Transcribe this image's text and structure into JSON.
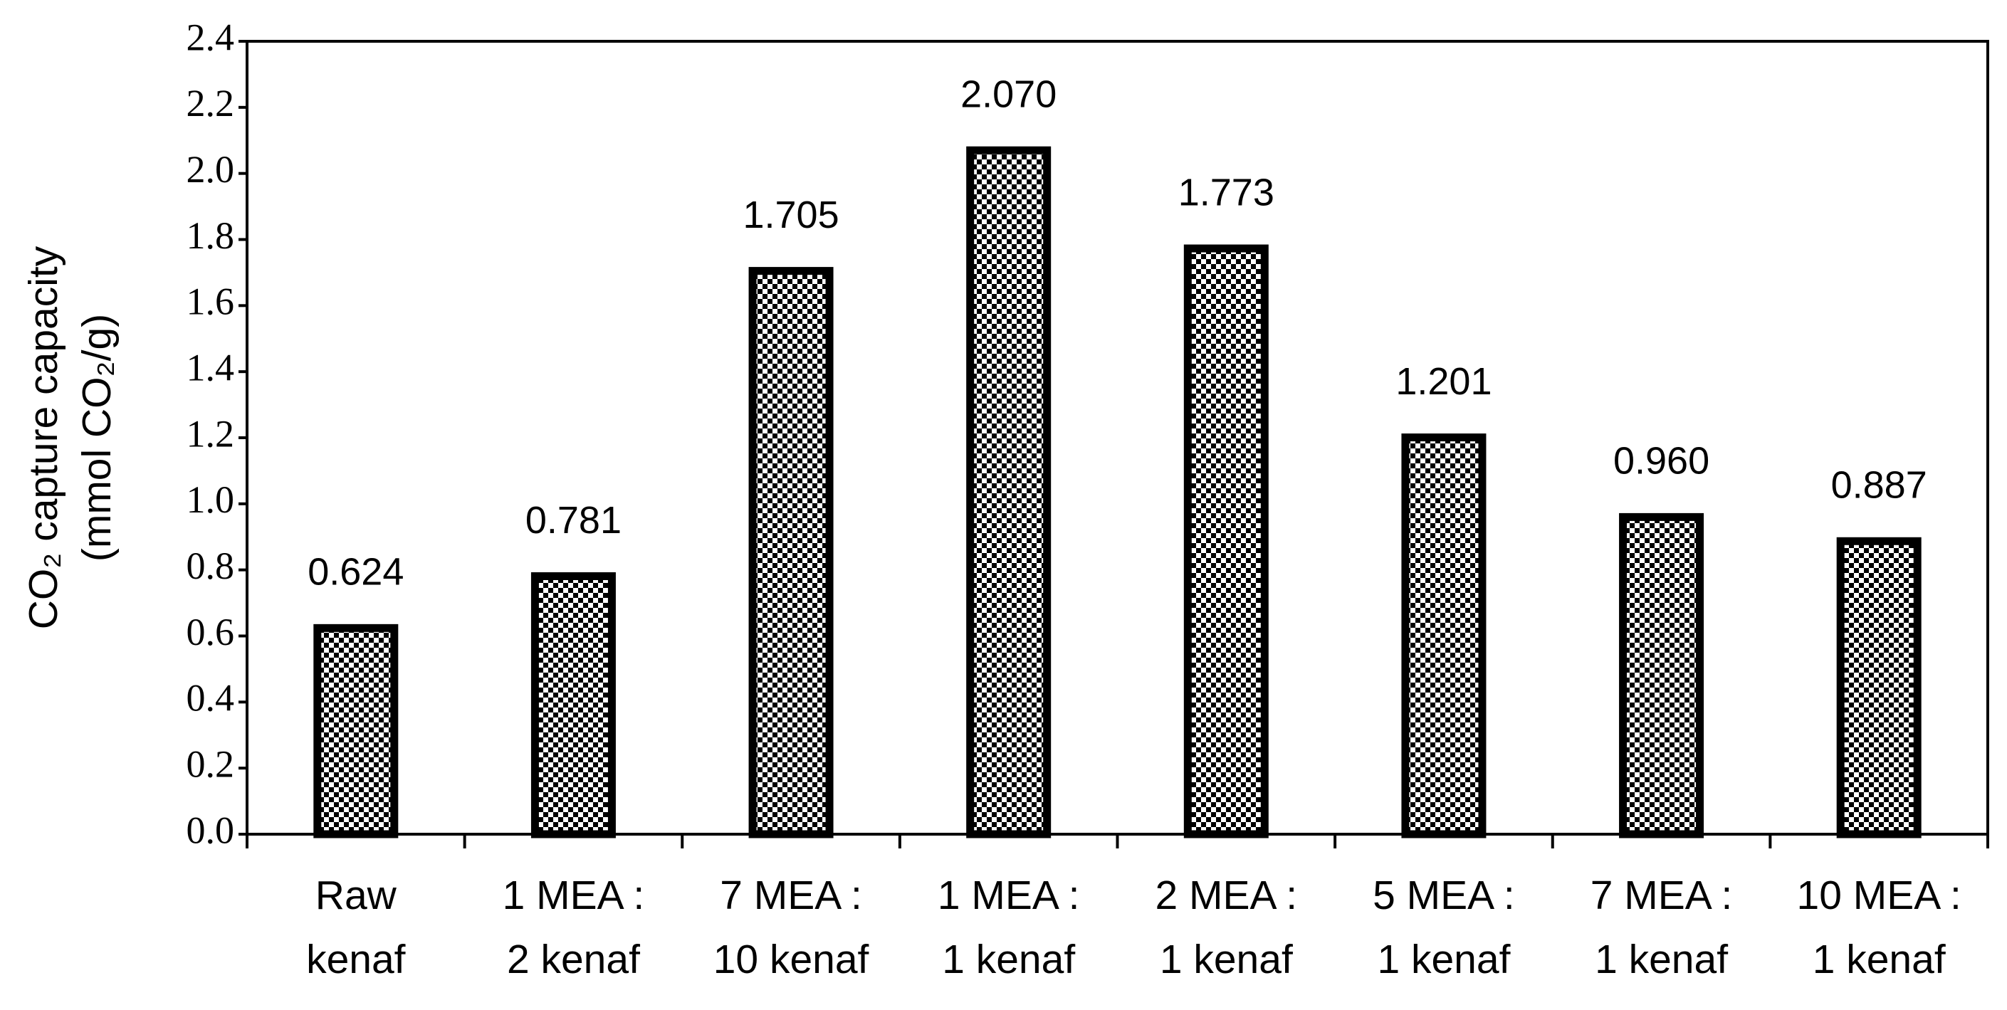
{
  "chart_data": {
    "type": "bar",
    "y_label": [
      "CO₂ capture capacity",
      "(mmol CO₂/g)"
    ],
    "categories": [
      [
        "Raw",
        "kenaf"
      ],
      [
        "1 MEA :",
        "2 kenaf"
      ],
      [
        "7 MEA :",
        "10 kenaf"
      ],
      [
        "1 MEA :",
        "1 kenaf"
      ],
      [
        "2 MEA :",
        "1 kenaf"
      ],
      [
        "5 MEA :",
        "1 kenaf"
      ],
      [
        "7 MEA :",
        "1 kenaf"
      ],
      [
        "10 MEA :",
        "1 kenaf"
      ]
    ],
    "values": [
      0.624,
      0.781,
      1.705,
      2.07,
      1.773,
      1.201,
      0.96,
      0.887
    ],
    "value_labels": [
      "0.624",
      "0.781",
      "1.705",
      "2.070",
      "1.773",
      "1.201",
      "0.960",
      "0.887"
    ],
    "color": "#000000",
    "ylim": [
      0,
      2.4
    ],
    "yticks": [
      {
        "value": 0,
        "label": "0.0"
      },
      {
        "value": 0.2,
        "label": "0.2"
      },
      {
        "value": 0.4,
        "label": "0.4"
      },
      {
        "value": 0.6,
        "label": "0.6"
      },
      {
        "value": 0.8,
        "label": "0.8"
      },
      {
        "value": 1,
        "label": "1.0"
      },
      {
        "value": 1.2,
        "label": "1.2"
      },
      {
        "value": 1.4,
        "label": "1.4"
      },
      {
        "value": 1.6,
        "label": "1.6"
      },
      {
        "value": 1.8,
        "label": "1.8"
      },
      {
        "value": 2,
        "label": "2.0"
      },
      {
        "value": 2.2,
        "label": "2.2"
      },
      {
        "value": 2.4,
        "label": "2.4"
      }
    ],
    "grid": false
  }
}
